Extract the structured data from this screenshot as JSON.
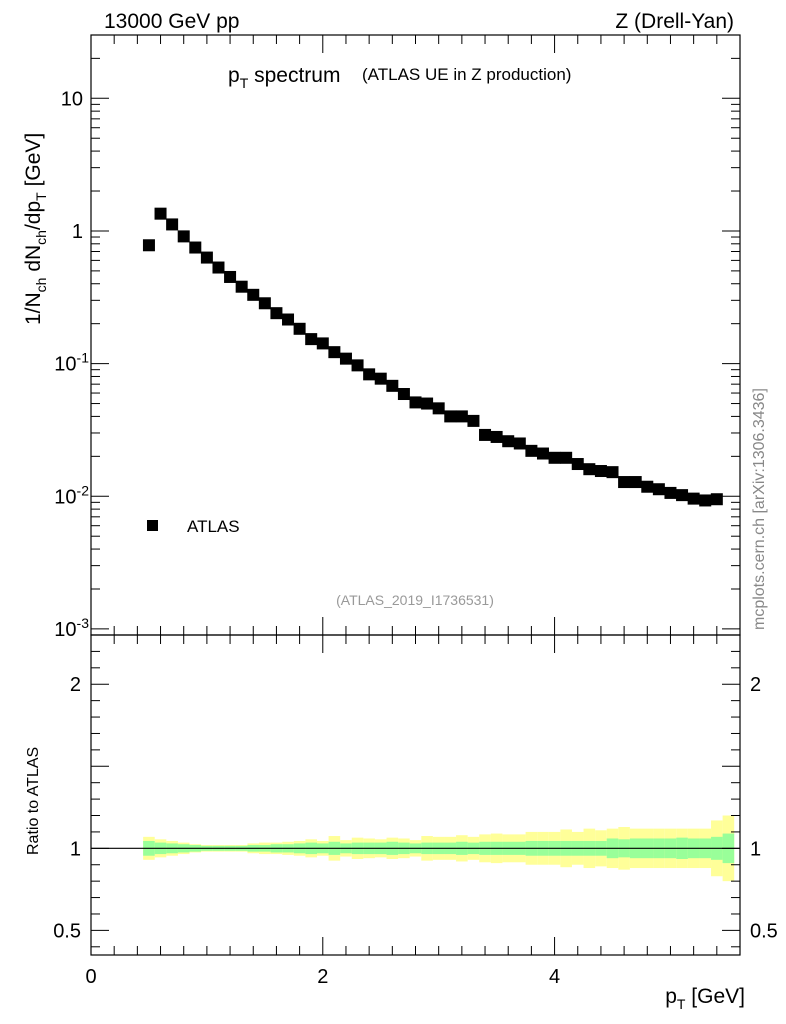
{
  "header": {
    "left": "13000 GeV pp",
    "right": "Z (Drell-Yan)"
  },
  "title": {
    "main": "p",
    "main_sub": "T",
    "main_rest": " spectrum",
    "paren": "(ATLAS UE in Z production)"
  },
  "side_label": "mcplots.cern.ch [arXiv:1306.3436]",
  "analysis_tag": "(ATLAS_2019_I1736531)",
  "legend": {
    "entry": "ATLAS",
    "placement": "center-left"
  },
  "axes": {
    "xlabel": "p",
    "xlabel_sub": "T",
    "xlabel_unit": " [GeV]",
    "ylabel_ratio": "Ratio to ATLAS"
  },
  "colors": {
    "marker": "#000000",
    "band_inner": "#99ff99",
    "band_outer": "#ffff99",
    "ref_line": "#000000"
  },
  "chart_data": {
    "type": "scatter",
    "x_range": [
      0,
      5.6
    ],
    "x_ticks": [
      "0",
      "2",
      "4"
    ],
    "main": {
      "y_scale": "log",
      "y_range": [
        0.0009,
        30
      ],
      "y_tick_labels": [
        {
          "base": "10",
          "exp": "-3",
          "value": 0.001
        },
        {
          "base": "10",
          "exp": "-2",
          "value": 0.01
        },
        {
          "base": "10",
          "exp": "-1",
          "value": 0.1
        },
        {
          "base": "1",
          "exp": "",
          "value": 1
        },
        {
          "base": "10",
          "exp": "",
          "value": 10
        }
      ],
      "series": [
        {
          "name": "ATLAS",
          "x": [
            0.5,
            0.6,
            0.7,
            0.8,
            0.9,
            1.0,
            1.1,
            1.2,
            1.3,
            1.4,
            1.5,
            1.6,
            1.7,
            1.8,
            1.9,
            2.0,
            2.1,
            2.2,
            2.3,
            2.4,
            2.5,
            2.6,
            2.7,
            2.8,
            2.9,
            3.0,
            3.1,
            3.2,
            3.3,
            3.4,
            3.5,
            3.6,
            3.7,
            3.8,
            3.9,
            4.0,
            4.1,
            4.2,
            4.3,
            4.4,
            4.5,
            4.6,
            4.7,
            4.8,
            4.9,
            5.0,
            5.1,
            5.2,
            5.3,
            5.4
          ],
          "y": [
            0.78,
            1.35,
            1.12,
            0.91,
            0.75,
            0.63,
            0.53,
            0.45,
            0.38,
            0.33,
            0.285,
            0.24,
            0.215,
            0.183,
            0.153,
            0.142,
            0.122,
            0.109,
            0.097,
            0.083,
            0.077,
            0.068,
            0.059,
            0.051,
            0.05,
            0.046,
            0.04,
            0.04,
            0.037,
            0.029,
            0.028,
            0.026,
            0.025,
            0.022,
            0.021,
            0.0195,
            0.0195,
            0.0175,
            0.016,
            0.0155,
            0.0152,
            0.0128,
            0.0128,
            0.0118,
            0.0113,
            0.0106,
            0.0102,
            0.0096,
            0.0093,
            0.0095
          ]
        }
      ]
    },
    "ratio": {
      "y_range": [
        0.35,
        2.3
      ],
      "y_ticks": [
        "0.5",
        "1",
        "2"
      ],
      "y_tick_values": [
        0.5,
        1,
        2
      ],
      "reference": 1,
      "bins_edges": [
        0.45,
        0.55,
        0.65,
        0.75,
        0.85,
        0.95,
        1.05,
        1.15,
        1.25,
        1.35,
        1.45,
        1.55,
        1.65,
        1.75,
        1.85,
        1.95,
        2.05,
        2.15,
        2.25,
        2.35,
        2.45,
        2.55,
        2.65,
        2.75,
        2.85,
        2.95,
        3.05,
        3.15,
        3.25,
        3.35,
        3.45,
        3.55,
        3.65,
        3.75,
        3.85,
        3.95,
        4.05,
        4.15,
        4.25,
        4.35,
        4.45,
        4.55,
        4.65,
        4.75,
        4.85,
        4.95,
        5.05,
        5.15,
        5.25,
        5.35,
        5.45,
        5.55
      ],
      "inner_band": [
        0.045,
        0.035,
        0.03,
        0.025,
        0.02,
        0.015,
        0.015,
        0.015,
        0.015,
        0.02,
        0.02,
        0.025,
        0.025,
        0.03,
        0.035,
        0.03,
        0.04,
        0.03,
        0.035,
        0.035,
        0.035,
        0.04,
        0.035,
        0.03,
        0.035,
        0.035,
        0.035,
        0.04,
        0.035,
        0.04,
        0.04,
        0.04,
        0.04,
        0.045,
        0.045,
        0.045,
        0.045,
        0.045,
        0.045,
        0.045,
        0.06,
        0.055,
        0.06,
        0.06,
        0.06,
        0.06,
        0.065,
        0.06,
        0.06,
        0.07,
        0.09
      ],
      "outer_band": [
        0.07,
        0.055,
        0.045,
        0.035,
        0.025,
        0.02,
        0.02,
        0.02,
        0.02,
        0.03,
        0.035,
        0.035,
        0.04,
        0.045,
        0.055,
        0.045,
        0.075,
        0.05,
        0.065,
        0.06,
        0.055,
        0.065,
        0.06,
        0.05,
        0.075,
        0.07,
        0.07,
        0.08,
        0.07,
        0.085,
        0.09,
        0.085,
        0.085,
        0.1,
        0.1,
        0.1,
        0.115,
        0.1,
        0.12,
        0.11,
        0.12,
        0.13,
        0.12,
        0.12,
        0.12,
        0.12,
        0.12,
        0.12,
        0.12,
        0.17,
        0.2
      ]
    }
  }
}
